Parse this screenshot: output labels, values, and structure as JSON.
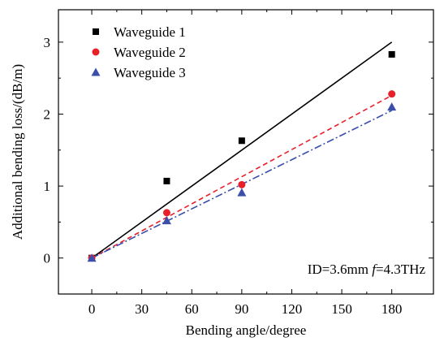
{
  "chart_data": {
    "type": "scatter",
    "xlabel": "Bending angle/degree",
    "ylabel": "Additional bending loss/(dB/m)",
    "xlim": [
      -20,
      205
    ],
    "ylim": [
      -0.5,
      3.45
    ],
    "xticks": [
      0,
      30,
      60,
      90,
      120,
      150,
      180
    ],
    "yticks": [
      0,
      1,
      2,
      3
    ],
    "legend_position": "top-left",
    "annotation": {
      "prefix": "ID=3.6mm ",
      "italic": "f",
      "suffix": "=4.3THz"
    },
    "series": [
      {
        "name": "Waveguide 1",
        "marker": "square",
        "color": "#000000",
        "x": [
          0,
          45,
          90,
          180
        ],
        "y": [
          0,
          1.07,
          1.63,
          2.83
        ],
        "fit_line": {
          "x": [
            0,
            180
          ],
          "y": [
            0,
            3.0
          ],
          "style": "solid"
        }
      },
      {
        "name": "Waveguide 2",
        "marker": "circle",
        "color": "#e8202a",
        "x": [
          0,
          45,
          90,
          180
        ],
        "y": [
          0,
          0.63,
          1.02,
          2.28
        ],
        "fit_line": {
          "x": [
            0,
            180
          ],
          "y": [
            0,
            2.26
          ],
          "style": "dash"
        }
      },
      {
        "name": "Waveguide 3",
        "marker": "triangle",
        "color": "#3b4fa8",
        "x": [
          0,
          45,
          90,
          180
        ],
        "y": [
          0,
          0.52,
          0.91,
          2.1
        ],
        "fit_line": {
          "x": [
            0,
            180
          ],
          "y": [
            0,
            2.05
          ],
          "style": "dashdot"
        }
      }
    ]
  }
}
